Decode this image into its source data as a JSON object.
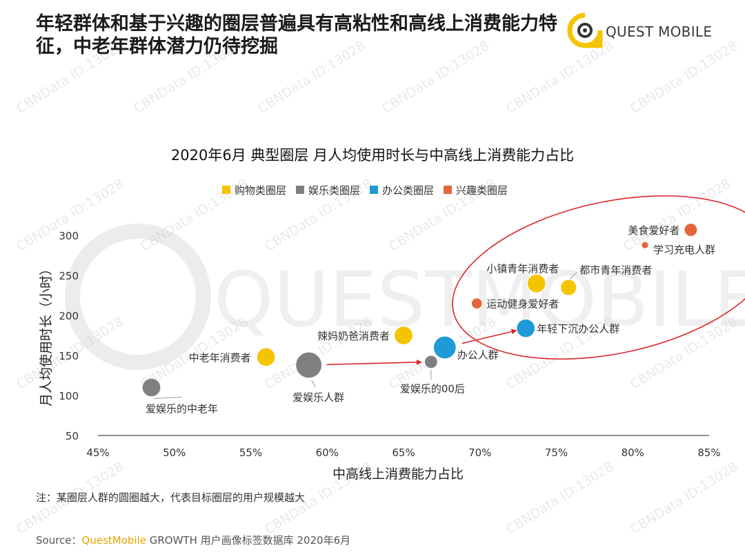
{
  "headline": "年轻群体和基于兴趣的圈层普遍具有高粘性和高线上消费能力特征，中老年群体潜力仍待挖掘",
  "logo": {
    "text": "QUEST MOBILE",
    "icon": "questmobile-logo-icon",
    "color": "#f5c400"
  },
  "watermark": {
    "text": "CBNData ID:13028",
    "big_text": "QUESTMOBILE"
  },
  "note": "注：某圈层人群的圆圈越大，代表目标圈层的用户规模越大",
  "source": {
    "prefix": "Source：",
    "brand": "QuestMobile",
    "rest": " GROWTH 用户画像标签数据库 2020年6月"
  },
  "colors": {
    "shopping": "#f5c400",
    "entertainment": "#7f7f7f",
    "office": "#1e9ad6",
    "interest": "#e8623c",
    "ellipse": "#d9262c",
    "arrow": "#d9262c"
  },
  "chart_data": {
    "type": "scatter",
    "title": "2020年6月 典型圈层 月人均使用时长与中高线上消费能力占比",
    "xlabel": "中高线上消费能力占比",
    "ylabel": "月人均使用时长（小时）",
    "xlim": [
      45,
      85
    ],
    "ylim": [
      50,
      320
    ],
    "xticks": [
      "45%",
      "50%",
      "55%",
      "60%",
      "65%",
      "70%",
      "75%",
      "80%",
      "85%"
    ],
    "yticks": [
      "50",
      "100",
      "150",
      "200",
      "250",
      "300"
    ],
    "legend": [
      {
        "name": "购物类圈层",
        "key": "shopping"
      },
      {
        "name": "娱乐类圈层",
        "key": "entertainment"
      },
      {
        "name": "办公类圈层",
        "key": "office"
      },
      {
        "name": "兴趣类圈层",
        "key": "interest"
      }
    ],
    "legend_position": "top",
    "points": [
      {
        "label": "爱娱乐的中老年",
        "x": 48.5,
        "y": 110,
        "size": 2,
        "cat": "entertainment"
      },
      {
        "label": "中老年消费者",
        "x": 56.0,
        "y": 148,
        "size": 2,
        "cat": "shopping"
      },
      {
        "label": "爱娱乐人群",
        "x": 58.8,
        "y": 138,
        "size": 4,
        "cat": "entertainment"
      },
      {
        "label": "辣妈奶爸消费者",
        "x": 65.0,
        "y": 175,
        "size": 2,
        "cat": "shopping"
      },
      {
        "label": "爱娱乐的00后",
        "x": 66.8,
        "y": 142,
        "size": 1,
        "cat": "entertainment"
      },
      {
        "label": "办公人群",
        "x": 67.7,
        "y": 160,
        "size": 3,
        "cat": "office"
      },
      {
        "label": "运动健身爱好者",
        "x": 69.8,
        "y": 215,
        "size": 0.7,
        "cat": "interest"
      },
      {
        "label": "年轻下沉办公人群",
        "x": 73.0,
        "y": 184,
        "size": 2,
        "cat": "office"
      },
      {
        "label": "小镇青年消费者",
        "x": 73.7,
        "y": 240,
        "size": 2,
        "cat": "shopping"
      },
      {
        "label": "都市青年消费者",
        "x": 75.8,
        "y": 235,
        "size": 1.5,
        "cat": "shopping"
      },
      {
        "label": "学习充电人群",
        "x": 80.8,
        "y": 288,
        "size": 0.3,
        "cat": "interest"
      },
      {
        "label": "美食爱好者",
        "x": 83.8,
        "y": 307,
        "size": 1,
        "cat": "interest"
      }
    ]
  }
}
